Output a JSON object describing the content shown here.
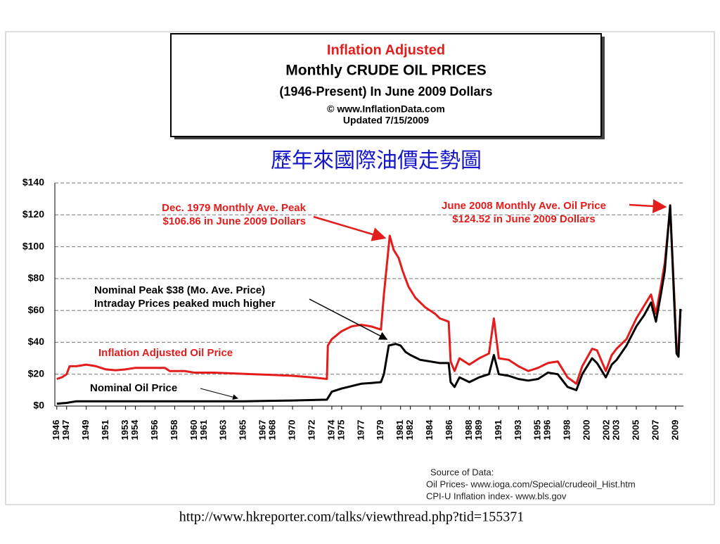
{
  "chart_data": {
    "type": "line",
    "title": [
      "Inflation Adjusted",
      "Monthly CRUDE OIL PRICES",
      "(1946-Present) In June 2009 Dollars",
      "© www.InflationData.com",
      "Updated 7/15/2009"
    ],
    "title_colors": [
      "#e31c1c",
      "#000000",
      "#000000",
      "#000000",
      "#000000"
    ],
    "chinese_title": "歷年來國際油價走勢圖",
    "xlim": [
      1945.8,
      2009.8
    ],
    "xticks": [
      1946,
      1947,
      1949,
      1951,
      1953,
      1954,
      1956,
      1958,
      1960,
      1961,
      1963,
      1965,
      1967,
      1968,
      1970,
      1972,
      1974,
      1975,
      1977,
      1979,
      1981,
      1982,
      1984,
      1986,
      1988,
      1989,
      1991,
      1993,
      1995,
      1996,
      1998,
      2000,
      2002,
      2003,
      2005,
      2007,
      2009
    ],
    "ylim": [
      0,
      140
    ],
    "yticks": [
      {
        "value": 0,
        "label": "$0"
      },
      {
        "value": 20,
        "label": "$20"
      },
      {
        "value": 40,
        "label": "$40"
      },
      {
        "value": 60,
        "label": "$60"
      },
      {
        "value": 80,
        "label": "$80"
      },
      {
        "value": 100,
        "label": "$100"
      },
      {
        "value": 120,
        "label": "$120"
      },
      {
        "value": 140,
        "label": "$140"
      }
    ],
    "grid": true,
    "series": [
      {
        "name": "Inflation Adjusted Oil Price",
        "color": "#e31c1c",
        "x": [
          1946,
          1946.5,
          1947,
          1947.3,
          1948,
          1949,
          1950,
          1951,
          1952,
          1953,
          1954,
          1955,
          1956,
          1957,
          1957.5,
          1959,
          1960,
          1962,
          1964,
          1966,
          1968,
          1970,
          1972,
          1973.5,
          1973.6,
          1974,
          1975,
          1976,
          1977,
          1978,
          1979,
          1979.3,
          1979.9,
          1980.3,
          1980.8,
          1981.2,
          1981.8,
          1982.5,
          1983.5,
          1984.5,
          1985,
          1985.9,
          1986.1,
          1986.5,
          1987,
          1988,
          1989,
          1990,
          1990.5,
          1991,
          1992,
          1993,
          1994,
          1995,
          1996,
          1997,
          1998,
          1998.9,
          1999.5,
          2000.5,
          2001,
          2001.9,
          2002.5,
          2003,
          2004,
          2005,
          2005.8,
          2006.5,
          2007,
          2007.5,
          2007.9,
          2008.45,
          2008.9,
          2009.1,
          2009.3,
          2009.5
        ],
        "values": [
          17,
          18,
          20,
          25,
          25,
          26,
          25,
          23,
          22.5,
          23,
          24,
          24,
          24,
          24,
          22,
          22,
          21,
          21,
          20.5,
          20,
          19.5,
          19,
          18,
          17,
          38,
          42,
          47,
          50,
          51,
          50,
          48,
          70,
          106.86,
          98,
          93,
          85,
          75,
          68,
          62,
          58,
          55,
          53,
          28,
          22,
          30,
          26,
          30,
          33,
          55,
          30,
          29,
          25,
          22,
          24,
          27,
          28,
          18,
          14,
          25,
          36,
          35,
          22,
          32,
          36,
          42,
          55,
          63,
          70,
          58,
          75,
          90,
          124.52,
          65,
          35,
          37,
          61
        ]
      },
      {
        "name": "Nominal Oil Price",
        "color": "#000000",
        "x": [
          1946,
          1947,
          1948,
          1950,
          1955,
          1960,
          1965,
          1970,
          1973.5,
          1974,
          1975,
          1976,
          1977,
          1978,
          1979,
          1979.3,
          1979.8,
          1980.5,
          1981,
          1981.5,
          1982,
          1983,
          1985,
          1985.9,
          1986.1,
          1986.5,
          1987,
          1988,
          1989,
          1990,
          1990.5,
          1991,
          1992,
          1993,
          1994,
          1995,
          1996,
          1997,
          1998,
          1998.9,
          1999.5,
          2000.5,
          2001,
          2001.9,
          2002.5,
          2003,
          2004,
          2005,
          2005.8,
          2006.5,
          2007,
          2007.5,
          2007.9,
          2008.45,
          2008.9,
          2009.1,
          2009.3,
          2009.5
        ],
        "values": [
          1.5,
          2,
          3,
          3,
          3,
          3,
          3,
          3.5,
          4,
          9,
          11,
          12.5,
          14,
          14.5,
          15,
          20,
          38,
          39,
          38,
          34,
          32,
          29,
          27,
          27,
          15,
          12,
          18,
          15,
          18,
          20,
          32,
          20,
          19,
          17,
          16,
          17,
          21,
          20,
          12,
          10,
          20,
          30,
          27,
          18,
          26,
          29,
          38,
          50,
          57,
          65,
          53,
          70,
          85,
          126,
          60,
          33,
          31,
          61
        ]
      }
    ],
    "annotations": [
      {
        "lines": [
          "Dec. 1979 Monthly Ave. Peak",
          "$106.86 in June 2009 Dollars"
        ],
        "color": "#e31c1c"
      },
      {
        "lines": [
          "Nominal Peak $38 (Mo. Ave. Price)",
          "Intraday Prices peaked much higher"
        ],
        "color": "#000000"
      },
      {
        "lines": [
          "June 2008 Monthly Ave. Oil  Price",
          "$124.52 in June 2009 Dollars"
        ],
        "color": "#e31c1c"
      }
    ],
    "source": [
      "Source of Data:",
      "Oil Prices-   www.ioga.com/Special/crudeoil_Hist.htm",
      "CPI-U  Inflation index-   www.bls.gov"
    ],
    "url": "http://www.hkreporter.com/talks/viewthread.php?tid=155371"
  }
}
